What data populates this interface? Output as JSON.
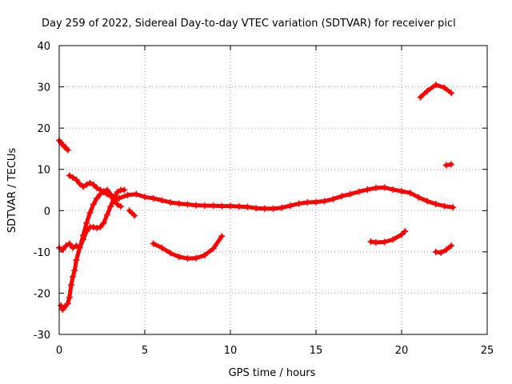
{
  "chart_data": {
    "type": "scatter",
    "title": "Day 259 of 2022, Sidereal Day-to-day VTEC variation (SDTVAR) for receiver picl",
    "xlabel": "GPS time / hours",
    "ylabel": "SDTVAR / TECUs",
    "xlim": [
      0,
      25
    ],
    "ylim": [
      -30,
      40
    ],
    "xticks": [
      0,
      5,
      10,
      15,
      20,
      25
    ],
    "yticks": [
      -30,
      -20,
      -10,
      0,
      10,
      20,
      30,
      40
    ],
    "grid": true,
    "marker": "+",
    "color": "#ff0000",
    "segments": [
      {
        "name": "start-high",
        "points": [
          [
            0.0,
            17
          ],
          [
            0.1,
            16.5
          ],
          [
            0.2,
            16
          ],
          [
            0.3,
            15.5
          ],
          [
            0.4,
            15.2
          ],
          [
            0.5,
            14.7
          ]
        ]
      },
      {
        "name": "start-low-climb",
        "points": [
          [
            0.1,
            -23
          ],
          [
            0.2,
            -24
          ],
          [
            0.3,
            -23.5
          ],
          [
            0.5,
            -22.5
          ],
          [
            0.6,
            -21
          ],
          [
            0.7,
            -18
          ],
          [
            0.8,
            -16
          ],
          [
            0.9,
            -14.5
          ],
          [
            1.0,
            -12
          ],
          [
            1.2,
            -9
          ],
          [
            1.4,
            -6
          ],
          [
            1.6,
            -3
          ],
          [
            1.8,
            -0.5
          ],
          [
            2.0,
            1.5
          ],
          [
            2.2,
            3
          ],
          [
            2.4,
            4
          ],
          [
            2.6,
            4.7
          ],
          [
            2.8,
            5
          ],
          [
            3.0,
            4
          ],
          [
            3.2,
            2.5
          ],
          [
            3.4,
            1.5
          ],
          [
            3.6,
            1
          ]
        ]
      },
      {
        "name": "start-mid",
        "points": [
          [
            0.0,
            -9
          ],
          [
            0.2,
            -9.5
          ],
          [
            0.4,
            -8.5
          ],
          [
            0.6,
            -8
          ],
          [
            0.8,
            -9
          ],
          [
            1.0,
            -8.5
          ],
          [
            1.2,
            -9
          ],
          [
            1.4,
            -7
          ],
          [
            1.6,
            -5
          ],
          [
            1.8,
            -4
          ],
          [
            2.0,
            -4
          ],
          [
            2.2,
            -4.2
          ],
          [
            2.4,
            -4
          ],
          [
            2.6,
            -3
          ],
          [
            2.8,
            -1
          ],
          [
            3.0,
            1
          ],
          [
            3.2,
            3
          ],
          [
            3.4,
            4.5
          ],
          [
            3.6,
            5
          ],
          [
            3.8,
            5
          ]
        ]
      },
      {
        "name": "early-arc",
        "points": [
          [
            0.6,
            8.5
          ],
          [
            0.8,
            8
          ],
          [
            1.0,
            7.5
          ],
          [
            1.2,
            6.5
          ],
          [
            1.4,
            5.8
          ],
          [
            1.6,
            6.3
          ],
          [
            1.8,
            6.7
          ],
          [
            2.0,
            6.3
          ],
          [
            2.2,
            5.5
          ],
          [
            2.4,
            5
          ],
          [
            2.6,
            4.5
          ],
          [
            2.8,
            4
          ],
          [
            3.0,
            3.5
          ],
          [
            3.2,
            3
          ],
          [
            3.4,
            2.8
          ]
        ]
      },
      {
        "name": "short-1",
        "points": [
          [
            4.1,
            0
          ],
          [
            4.4,
            -1.2
          ]
        ]
      },
      {
        "name": "main-trend",
        "points": [
          [
            3.5,
            3
          ],
          [
            4.0,
            3.8
          ],
          [
            4.5,
            4
          ],
          [
            5.0,
            3.3
          ],
          [
            5.5,
            3
          ],
          [
            6.0,
            2.5
          ],
          [
            6.5,
            2
          ],
          [
            7.0,
            1.7
          ],
          [
            7.5,
            1.5
          ],
          [
            8.0,
            1.3
          ],
          [
            8.5,
            1.2
          ],
          [
            9.0,
            1.2
          ],
          [
            9.5,
            1.1
          ],
          [
            10.0,
            1.1
          ],
          [
            10.5,
            1
          ],
          [
            11.0,
            0.9
          ],
          [
            11.5,
            0.6
          ],
          [
            12.0,
            0.5
          ],
          [
            12.5,
            0.5
          ],
          [
            13.0,
            0.7
          ],
          [
            13.5,
            1.2
          ],
          [
            14.0,
            1.7
          ],
          [
            14.5,
            2
          ],
          [
            15.0,
            2.1
          ],
          [
            15.5,
            2.3
          ],
          [
            16.0,
            2.8
          ],
          [
            16.5,
            3.5
          ],
          [
            17.0,
            4
          ],
          [
            17.5,
            4.6
          ],
          [
            18.0,
            5.1
          ],
          [
            18.5,
            5.5
          ],
          [
            19.0,
            5.6
          ],
          [
            19.5,
            5.1
          ],
          [
            20.0,
            4.7
          ],
          [
            20.5,
            4.3
          ],
          [
            21.0,
            3.2
          ],
          [
            21.5,
            2.3
          ],
          [
            22.0,
            1.6
          ],
          [
            22.5,
            1.1
          ],
          [
            23.0,
            0.8
          ]
        ]
      },
      {
        "name": "dip-arc",
        "points": [
          [
            5.5,
            -8
          ],
          [
            6.0,
            -9
          ],
          [
            6.5,
            -10.3
          ],
          [
            7.0,
            -11.2
          ],
          [
            7.5,
            -11.6
          ],
          [
            8.0,
            -11.5
          ],
          [
            8.5,
            -10.8
          ],
          [
            9.0,
            -9.2
          ],
          [
            9.5,
            -6.2
          ]
        ]
      },
      {
        "name": "late-dip",
        "points": [
          [
            18.2,
            -7.5
          ],
          [
            18.5,
            -7.7
          ],
          [
            19.0,
            -7.6
          ],
          [
            19.5,
            -7
          ],
          [
            20.0,
            -5.8
          ],
          [
            20.2,
            -5
          ]
        ]
      },
      {
        "name": "late-high",
        "points": [
          [
            21.1,
            27.5
          ],
          [
            21.5,
            29
          ],
          [
            22.0,
            30.5
          ],
          [
            22.5,
            29.8
          ],
          [
            22.9,
            28.5
          ]
        ]
      },
      {
        "name": "late-mid",
        "points": [
          [
            22.6,
            11
          ],
          [
            22.9,
            11.2
          ]
        ]
      },
      {
        "name": "late-low",
        "points": [
          [
            22.0,
            -10
          ],
          [
            22.3,
            -10.2
          ],
          [
            22.6,
            -9.5
          ],
          [
            22.9,
            -8.5
          ]
        ]
      }
    ]
  }
}
